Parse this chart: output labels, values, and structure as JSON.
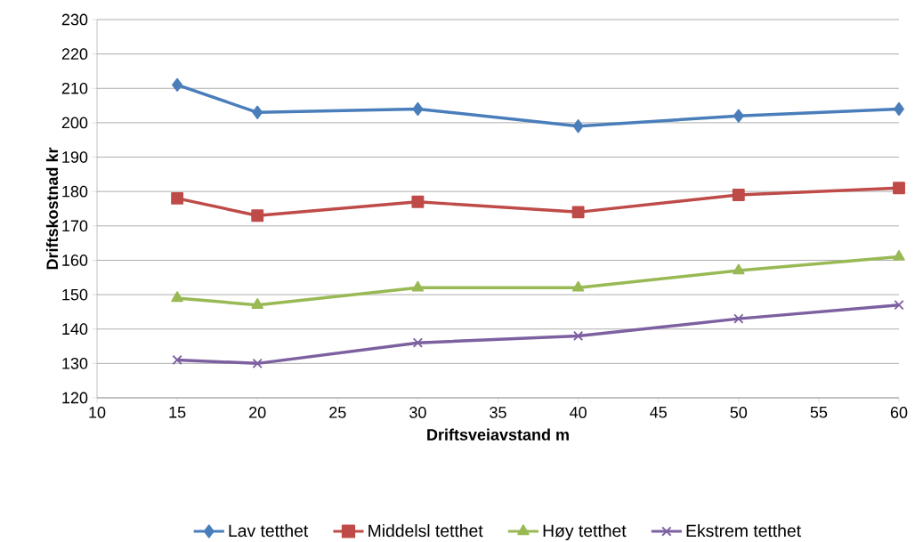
{
  "chart_data": {
    "type": "line",
    "xlabel": "Driftsveiavstand m",
    "ylabel": "Driftskostnad kr",
    "x": [
      15,
      20,
      30,
      40,
      50,
      60
    ],
    "series": [
      {
        "name": "Lav tetthet",
        "color": "#4a7ebb",
        "marker": "diamond",
        "values": [
          211,
          203,
          204,
          199,
          202,
          204
        ]
      },
      {
        "name": "Middelsl tetthet",
        "color": "#be4b48",
        "marker": "square",
        "values": [
          178,
          173,
          177,
          174,
          179,
          181
        ]
      },
      {
        "name": "Høy tetthet",
        "color": "#98b954",
        "marker": "triangle",
        "values": [
          149,
          147,
          152,
          152,
          157,
          161
        ]
      },
      {
        "name": "Ekstrem tetthet",
        "color": "#7d60a0",
        "marker": "cross",
        "values": [
          131,
          130,
          136,
          138,
          143,
          147
        ]
      }
    ],
    "xlim": [
      10,
      60
    ],
    "xticks": [
      10,
      15,
      20,
      25,
      30,
      35,
      40,
      45,
      50,
      55,
      60
    ],
    "ylim": [
      120,
      230
    ],
    "yticks": [
      120,
      130,
      140,
      150,
      160,
      170,
      180,
      190,
      200,
      210,
      220,
      230
    ],
    "grid": "y",
    "legend": "bottom",
    "line_style": "solid"
  }
}
